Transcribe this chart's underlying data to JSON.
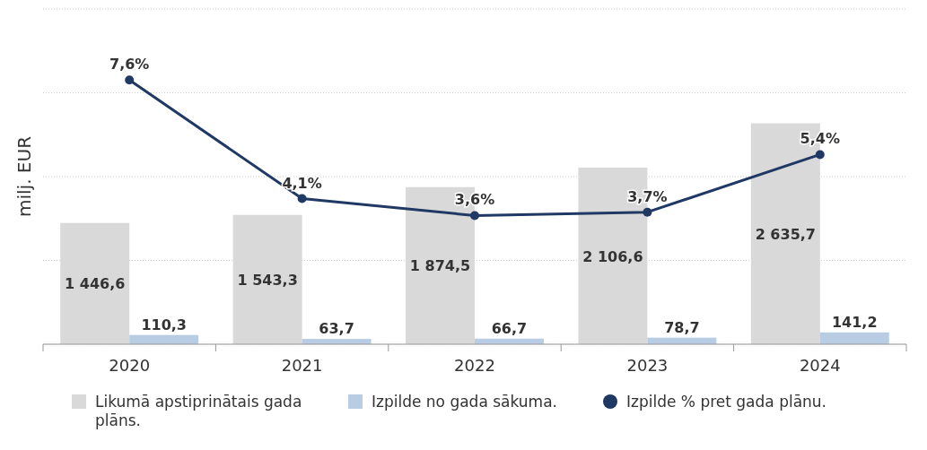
{
  "chart_data": {
    "type": "bar",
    "ylabel": "milj. EUR",
    "categories": [
      "2020",
      "2021",
      "2022",
      "2023",
      "2024"
    ],
    "ylim": [
      0,
      4000
    ],
    "yticks": [
      {
        "value": 0,
        "label": null
      },
      {
        "value": 1000,
        "label": null
      },
      {
        "value": 2000,
        "label": null
      },
      {
        "value": 3000,
        "label": null
      },
      {
        "value": 4000,
        "label": null
      }
    ],
    "y2lim": [
      -0.2,
      9.7
    ],
    "grid": "y",
    "legend": "bottom",
    "tick_labels": "x",
    "series": [
      {
        "name": "Likumā apstiprinātais gada plāns.",
        "color": "#d9d9d9",
        "values": [
          1446.6,
          1543.3,
          1874.5,
          2106.6,
          2635.7
        ],
        "value_labels": [
          "1 446,6",
          "1 543,3",
          "1 874,5",
          "2 106,6",
          "2 635,7"
        ]
      },
      {
        "name": "Izpilde no gada sākuma.",
        "color": "#b8cce4",
        "values": [
          110.3,
          63.7,
          66.7,
          78.7,
          141.2
        ],
        "value_labels": [
          "110,3",
          "63,7",
          "66,7",
          "78,7",
          "141,2"
        ]
      },
      {
        "name": "Izpilde % pret gada plānu.",
        "type": "line",
        "axis": "y2",
        "color": "#1f3864",
        "marker": "circle",
        "values": [
          7.6,
          4.1,
          3.6,
          3.7,
          5.4
        ],
        "value_labels": [
          "7,6%",
          "4,1%",
          "3,6%",
          "3,7%",
          "5,4%"
        ]
      }
    ]
  }
}
